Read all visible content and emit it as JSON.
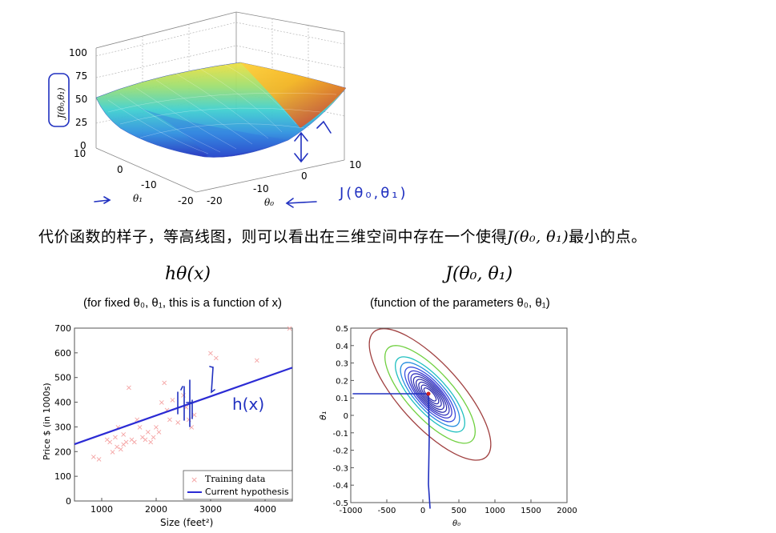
{
  "caption": {
    "text": "代价函数的样子，等高线图，则可以看出在三维空间中存在一个使得",
    "math": "J(θ₀, θ₁)",
    "tail": "最小的点。"
  },
  "chart_data": [
    {
      "type": "surface",
      "zlabel": "J(θ₀,θ₁)",
      "xlabel": "θ₁",
      "ylabel": "θ₀",
      "zticks": [
        "0",
        "25",
        "50",
        "75",
        "100"
      ],
      "theta1_ticks": [
        "10",
        "0",
        "-10",
        "-20"
      ],
      "theta0_ticks": [
        "-20",
        "-10",
        "0",
        "10"
      ],
      "handwritten_annotation": "J(θ₀,θ₁)",
      "colormap": "jet"
    },
    {
      "type": "scatter",
      "title": "hθ(x)",
      "subtitle": "(for fixed θ₀, θ₁, this is a function of x)",
      "xlabel": "Size (feet²)",
      "ylabel": "Price $ (in 1000s)",
      "xlim": [
        500,
        4500
      ],
      "ylim": [
        0,
        700
      ],
      "xticks": [
        1000,
        2000,
        3000,
        4000
      ],
      "yticks": [
        0,
        100,
        200,
        300,
        400,
        500,
        600,
        700
      ],
      "series": [
        {
          "name": "Training data",
          "marker": "x",
          "color": "#f4a0a0",
          "points": [
            [
              850,
              180
            ],
            [
              950,
              170
            ],
            [
              1100,
              250
            ],
            [
              1150,
              240
            ],
            [
              1200,
              200
            ],
            [
              1250,
              260
            ],
            [
              1280,
              220
            ],
            [
              1300,
              300
            ],
            [
              1350,
              210
            ],
            [
              1400,
              230
            ],
            [
              1400,
              270
            ],
            [
              1450,
              240
            ],
            [
              1500,
              460
            ],
            [
              1550,
              250
            ],
            [
              1600,
              240
            ],
            [
              1650,
              330
            ],
            [
              1700,
              300
            ],
            [
              1750,
              260
            ],
            [
              1800,
              250
            ],
            [
              1850,
              280
            ],
            [
              1900,
              240
            ],
            [
              1950,
              260
            ],
            [
              2000,
              300
            ],
            [
              2050,
              280
            ],
            [
              2100,
              400
            ],
            [
              2150,
              480
            ],
            [
              2200,
              370
            ],
            [
              2250,
              330
            ],
            [
              2300,
              410
            ],
            [
              2400,
              320
            ],
            [
              2500,
              430
            ],
            [
              2550,
              380
            ],
            [
              2600,
              330
            ],
            [
              2650,
              300
            ],
            [
              2700,
              350
            ],
            [
              3000,
              600
            ],
            [
              3100,
              580
            ],
            [
              3850,
              570
            ],
            [
              4450,
              700
            ]
          ]
        },
        {
          "name": "Current hypothesis",
          "type": "line",
          "color": "#2b2bd4",
          "x": [
            500,
            4500
          ],
          "y": [
            230,
            540
          ]
        }
      ],
      "legend": "bottom-right",
      "handwritten_annotation": "h(x)"
    },
    {
      "type": "contour",
      "title": "J(θ₀, θ₁)",
      "subtitle": "(function of the parameters θ₀, θ₁)",
      "xlabel": "θ₀",
      "ylabel": "θ₁",
      "xlim": [
        -1000,
        2000
      ],
      "ylim": [
        -0.5,
        0.5
      ],
      "xticks": [
        -1000,
        -500,
        0,
        500,
        1000,
        1500,
        2000
      ],
      "yticks": [
        -0.5,
        -0.4,
        -0.3,
        -0.2,
        -0.1,
        0,
        0.1,
        0.2,
        0.3,
        0.4,
        0.5
      ],
      "minimum": [
        100,
        0.12
      ],
      "levels": [
        0.35,
        0.5,
        0.65,
        0.8,
        0.95,
        1.1,
        1.25,
        1.45,
        1.7,
        2.0,
        2.6,
        3.5
      ],
      "level_colors": [
        "#3030b0",
        "#3030b0",
        "#3030b0",
        "#3030b0",
        "#3030b0",
        "#3535c0",
        "#3a3ad0",
        "#3a50e0",
        "#2a90e0",
        "#20c0c0",
        "#70d040",
        "#a04040"
      ]
    }
  ]
}
